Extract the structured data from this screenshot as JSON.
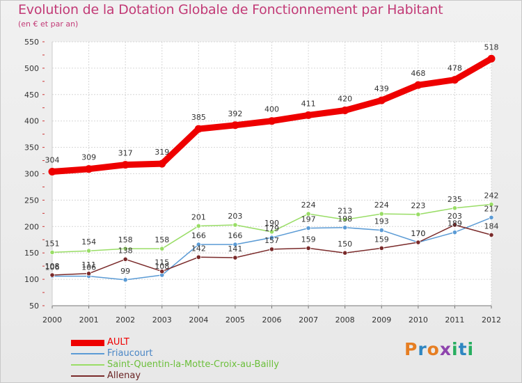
{
  "title": "Evolution de la Dotation Globale de Fonctionnement par Habitant",
  "subtitle": "(en € et par an)",
  "logo": "Proxiti",
  "logo_colors": [
    "#e67e22",
    "#2e86c1",
    "#e67e22",
    "#8e44ad",
    "#27ae60",
    "#2e86c1",
    "#27ae60"
  ],
  "chart_data": {
    "type": "line",
    "x": [
      "2000",
      "2001",
      "2002",
      "2003",
      "2004",
      "2005",
      "2006",
      "2007",
      "2008",
      "2009",
      "2010",
      "2011",
      "2012"
    ],
    "ylim": [
      50,
      550
    ],
    "yticks": [
      50,
      100,
      150,
      200,
      250,
      300,
      350,
      400,
      450,
      500,
      550
    ],
    "grid": true,
    "legend_position": "bottom",
    "series": [
      {
        "name": "AULT",
        "color": "#ee0000",
        "values": [
          304,
          309,
          317,
          319,
          385,
          392,
          400,
          411,
          420,
          439,
          468,
          478,
          518
        ]
      },
      {
        "name": "Friaucourt",
        "color": "#5b9bd5",
        "values": [
          106,
          106,
          99,
          108,
          166,
          166,
          179,
          197,
          198,
          193,
          170,
          189,
          217
        ]
      },
      {
        "name": "Saint-Quentin-la-Motte-Croix-au-Bailly",
        "color": "#99dd66",
        "values": [
          151,
          154,
          158,
          158,
          201,
          203,
          190,
          224,
          213,
          224,
          223,
          235,
          242
        ]
      },
      {
        "name": "Allenay",
        "color": "#7a2a2a",
        "values": [
          108,
          111,
          138,
          115,
          142,
          141,
          157,
          159,
          150,
          159,
          170,
          203,
          184
        ]
      }
    ]
  }
}
